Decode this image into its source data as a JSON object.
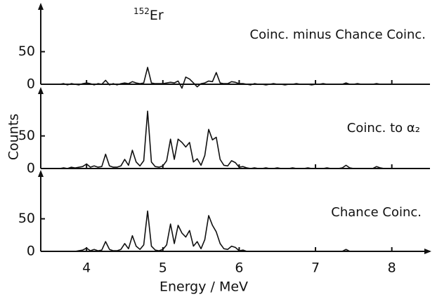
{
  "chart_data": {
    "type": "line",
    "annotation": {
      "mass": "152",
      "symbol": "Er"
    },
    "xlabel": "Energy / MeV",
    "ylabel": "Counts",
    "xlim": [
      3.4,
      8.5
    ],
    "xticks": [
      4,
      5,
      6,
      7,
      8
    ],
    "ylim": [
      0,
      125
    ],
    "yticks": [
      0,
      50
    ],
    "x": [
      3.65,
      3.7,
      3.75,
      3.8,
      3.85,
      3.9,
      3.95,
      4,
      4.05,
      4.1,
      4.15,
      4.2,
      4.25,
      4.3,
      4.35,
      4.4,
      4.45,
      4.5,
      4.55,
      4.6,
      4.65,
      4.7,
      4.75,
      4.8,
      4.85,
      4.9,
      4.95,
      5,
      5.05,
      5.1,
      5.15,
      5.2,
      5.25,
      5.3,
      5.35,
      5.4,
      5.45,
      5.5,
      5.55,
      5.6,
      5.65,
      5.7,
      5.75,
      5.8,
      5.85,
      5.9,
      5.95,
      6,
      6.05,
      6.1,
      6.15,
      6.2,
      6.25,
      6.3,
      6.35,
      6.4,
      6.45,
      6.5,
      6.55,
      6.6,
      6.65,
      6.7,
      6.75,
      6.8,
      6.85,
      6.9,
      6.95,
      7,
      7.05,
      7.1,
      7.15,
      7.2,
      7.25,
      7.3,
      7.35,
      7.4,
      7.45,
      7.5,
      7.55,
      7.6,
      7.65,
      7.7,
      7.75,
      7.8,
      7.85,
      7.9,
      7.95,
      8,
      8.05,
      8.1,
      8.15,
      8.2
    ],
    "series": [
      {
        "name": "Coinc. minus Chance Coinc.",
        "color": "#111111",
        "values": [
          0,
          1,
          -1,
          1,
          0,
          -1,
          1,
          2,
          1,
          -1,
          1,
          0,
          6,
          -1,
          1,
          -1,
          1,
          2,
          1,
          4,
          2,
          1,
          2,
          26,
          2,
          1,
          1,
          1,
          2,
          3,
          2,
          5,
          -6,
          11,
          8,
          2,
          -4,
          1,
          2,
          5,
          4,
          18,
          2,
          1,
          1,
          4,
          3,
          1,
          1,
          0,
          -1,
          1,
          0,
          0,
          -1,
          0,
          1,
          0,
          0,
          -1,
          0,
          0,
          1,
          0,
          0,
          0,
          -1,
          0,
          0,
          1,
          0,
          0,
          0,
          0,
          0,
          2,
          0,
          0,
          1,
          0,
          0,
          0,
          0,
          1,
          0,
          0,
          0,
          0,
          0,
          0,
          0,
          0
        ]
      },
      {
        "name": "Coinc. to α₂",
        "color": "#111111",
        "values": [
          0,
          1,
          0,
          2,
          1,
          2,
          3,
          7,
          2,
          4,
          2,
          3,
          22,
          4,
          2,
          2,
          4,
          14,
          5,
          28,
          10,
          4,
          12,
          88,
          10,
          3,
          2,
          4,
          12,
          45,
          14,
          45,
          40,
          33,
          40,
          10,
          15,
          5,
          20,
          60,
          44,
          48,
          14,
          5,
          4,
          12,
          9,
          2,
          3,
          1,
          0,
          1,
          0,
          0,
          1,
          0,
          0,
          1,
          0,
          0,
          0,
          1,
          0,
          0,
          0,
          1,
          0,
          0,
          0,
          0,
          1,
          0,
          0,
          0,
          1,
          5,
          1,
          0,
          0,
          0,
          0,
          0,
          0,
          3,
          1,
          0,
          0,
          0,
          0,
          0,
          0,
          0
        ]
      },
      {
        "name": "Chance Coinc.",
        "color": "#111111",
        "values": [
          0,
          0,
          0,
          0,
          0,
          1,
          2,
          5,
          1,
          3,
          1,
          2,
          15,
          3,
          1,
          1,
          3,
          12,
          4,
          24,
          8,
          3,
          10,
          62,
          8,
          2,
          1,
          3,
          10,
          42,
          12,
          40,
          28,
          22,
          32,
          8,
          15,
          4,
          18,
          55,
          40,
          30,
          12,
          4,
          3,
          8,
          6,
          1,
          2,
          0,
          0,
          0,
          0,
          0,
          0,
          0,
          0,
          0,
          0,
          0,
          0,
          0,
          0,
          0,
          0,
          0,
          0,
          0,
          0,
          0,
          0,
          0,
          0,
          0,
          0,
          3,
          0,
          0,
          0,
          0,
          0,
          0,
          0,
          0,
          0,
          0,
          0,
          0,
          0,
          0,
          0,
          0
        ]
      }
    ]
  }
}
